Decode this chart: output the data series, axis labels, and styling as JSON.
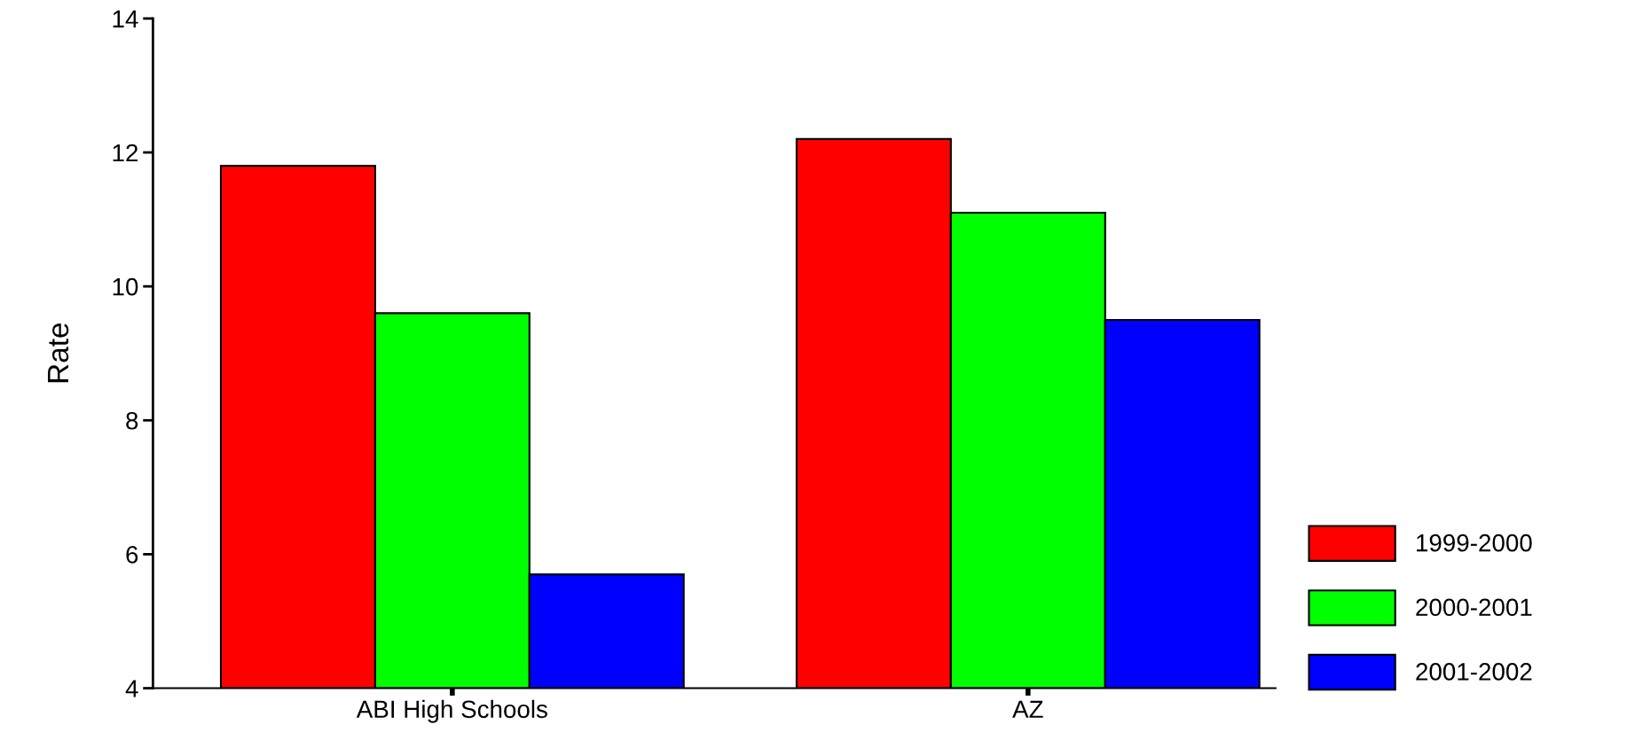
{
  "chart_data": {
    "type": "bar",
    "ylabel": "Rate",
    "categories": [
      "ABI High Schools",
      "AZ"
    ],
    "series": [
      {
        "name": "1999-2000",
        "color": "#ff0000",
        "values": [
          11.8,
          12.2
        ]
      },
      {
        "name": "2000-2001",
        "color": "#00ff00",
        "values": [
          9.6,
          11.1
        ]
      },
      {
        "name": "2001-2002",
        "color": "#0000ff",
        "values": [
          5.7,
          9.5
        ]
      }
    ],
    "ylim": [
      4,
      14
    ],
    "yticks": [
      4,
      6,
      8,
      10,
      12,
      14
    ],
    "grid": false,
    "legend": "right"
  }
}
